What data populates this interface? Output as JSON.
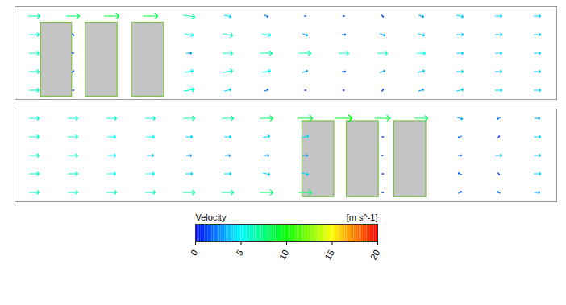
{
  "chart_data": [
    {
      "type": "vector_field",
      "tick_labels": false,
      "xlim": [
        0,
        56
      ],
      "ylim": [
        0,
        10
      ],
      "x": [
        2,
        6,
        10,
        14,
        18,
        22,
        26,
        30,
        34,
        38,
        42,
        46,
        50,
        54
      ],
      "y": [
        1,
        3,
        5,
        7,
        9
      ],
      "u": [
        [
          6,
          1,
          null,
          null,
          6,
          4,
          2,
          1,
          -1,
          1,
          3,
          4,
          4,
          4
        ],
        [
          6,
          1,
          null,
          null,
          5,
          6,
          5,
          3,
          2,
          3,
          4,
          4,
          4,
          4
        ],
        [
          6,
          -1,
          null,
          null,
          3,
          6,
          7,
          7,
          6,
          6,
          5,
          4,
          4,
          4
        ],
        [
          6,
          1,
          null,
          null,
          5,
          6,
          5,
          3,
          2,
          3,
          4,
          4,
          4,
          4
        ],
        [
          7,
          8,
          9,
          9,
          7,
          4,
          2,
          1,
          -1,
          1,
          3,
          4,
          4,
          4
        ]
      ],
      "v": [
        [
          0,
          0,
          null,
          null,
          1,
          1,
          1,
          0,
          0,
          1,
          1,
          1,
          0,
          0
        ],
        [
          0,
          1,
          null,
          null,
          1,
          1,
          1,
          1,
          0,
          1,
          1,
          0,
          0,
          0
        ],
        [
          0,
          0,
          null,
          null,
          0,
          0,
          0,
          0,
          0,
          0,
          0,
          0,
          0,
          0
        ],
        [
          0,
          -1,
          null,
          null,
          -1,
          -1,
          -1,
          -1,
          0,
          -1,
          -1,
          0,
          0,
          0
        ],
        [
          0,
          0,
          0,
          0,
          -1,
          -1,
          -1,
          0,
          0,
          -1,
          -1,
          -1,
          0,
          0
        ]
      ],
      "obstacles": [
        {
          "x": [
            2.7,
            5.9
          ],
          "y": [
            0.3,
            8.3
          ]
        },
        {
          "x": [
            7.3,
            10.6
          ],
          "y": [
            0.3,
            8.3
          ]
        },
        {
          "x": [
            12.1,
            15.4
          ],
          "y": [
            0.3,
            8.3
          ]
        }
      ]
    },
    {
      "type": "vector_field",
      "tick_labels": false,
      "xlim": [
        0,
        56
      ],
      "ylim": [
        0,
        10
      ],
      "x": [
        2,
        6,
        10,
        14,
        18,
        22,
        26,
        30,
        34,
        38,
        42,
        46,
        50,
        54
      ],
      "y": [
        1,
        3,
        5,
        7,
        9
      ],
      "u": [
        [
          6,
          6,
          6,
          6,
          7,
          7,
          8,
          8,
          null,
          1,
          null,
          2,
          -2,
          3
        ],
        [
          6,
          6,
          5,
          5,
          4,
          4,
          4,
          4,
          null,
          1,
          null,
          -2,
          1,
          4
        ],
        [
          6,
          6,
          5,
          4,
          3,
          3,
          3,
          3,
          null,
          -1,
          null,
          2,
          4,
          4
        ],
        [
          6,
          6,
          5,
          5,
          4,
          4,
          4,
          4,
          null,
          1,
          null,
          -2,
          1,
          4
        ],
        [
          6,
          6,
          6,
          6,
          7,
          7,
          8,
          9,
          10,
          9,
          8,
          3,
          -2,
          3
        ]
      ],
      "v": [
        [
          0,
          0,
          0,
          0,
          0,
          0,
          0,
          0,
          null,
          0,
          null,
          1,
          1,
          0
        ],
        [
          0,
          0,
          0,
          0,
          0,
          0,
          -1,
          -1,
          null,
          0,
          null,
          1,
          -1,
          0
        ],
        [
          0,
          0,
          0,
          0,
          0,
          0,
          0,
          0,
          null,
          0,
          null,
          0,
          0,
          0
        ],
        [
          0,
          0,
          0,
          0,
          0,
          0,
          1,
          1,
          null,
          0,
          null,
          -1,
          1,
          0
        ],
        [
          0,
          0,
          0,
          0,
          0,
          0,
          0,
          0,
          0,
          0,
          0,
          -1,
          -1,
          0
        ]
      ],
      "obstacles": [
        {
          "x": [
            29.7,
            33.0
          ],
          "y": [
            0.5,
            8.7
          ]
        },
        {
          "x": [
            34.3,
            37.6
          ],
          "y": [
            0.5,
            8.7
          ]
        },
        {
          "x": [
            39.2,
            42.5
          ],
          "y": [
            0.5,
            8.7
          ]
        }
      ]
    }
  ],
  "colorbar": {
    "label": "Velocity",
    "unit": "[m s^-1]",
    "range": [
      0,
      20
    ],
    "ticks": [
      0,
      5,
      10,
      15,
      20
    ]
  }
}
